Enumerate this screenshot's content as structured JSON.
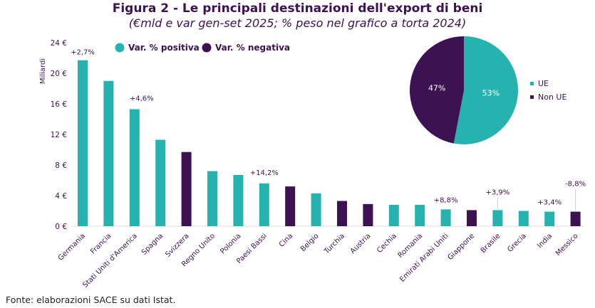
{
  "chart_data": {
    "type": "bar",
    "title": "Figura 2 - Le principali destinazioni dell'export di beni",
    "subtitle": "(€mld e var gen-set 2025; % peso nel grafico a torta 2024)",
    "ylabel": "Miliardi",
    "ylim": [
      0,
      24
    ],
    "yticks": [
      "0 €",
      "4 €",
      "8 €",
      "12 €",
      "16 €",
      "20 €",
      "24 €"
    ],
    "grid": false,
    "legend": {
      "position": "top",
      "items": [
        {
          "name": "Var. % positiva",
          "color": "#26b3b0"
        },
        {
          "name": "Var. % negativa",
          "color": "#3d1152"
        }
      ]
    },
    "categories": [
      "Germania",
      "Francia",
      "Stati Uniti d'America",
      "Spagna",
      "Svizzera",
      "Regno Unito",
      "Polonia",
      "Paesi Bassi",
      "Cina",
      "Belgio",
      "Turchia",
      "Austria",
      "Cechia",
      "Romania",
      "Emirati Arabi Uniti",
      "Giappone",
      "Brasile",
      "Grecia",
      "India",
      "Messico"
    ],
    "values": [
      21.7,
      19.0,
      15.3,
      11.3,
      9.7,
      7.2,
      6.7,
      5.6,
      5.2,
      4.3,
      3.3,
      2.9,
      2.8,
      2.8,
      2.2,
      2.1,
      2.1,
      2.0,
      1.9,
      1.9
    ],
    "variation": [
      "positive",
      "positive",
      "positive",
      "positive",
      "negative",
      "positive",
      "positive",
      "positive",
      "negative",
      "positive",
      "negative",
      "negative",
      "positive",
      "positive",
      "positive",
      "negative",
      "positive",
      "positive",
      "positive",
      "negative"
    ],
    "annotations": [
      {
        "category": "Germania",
        "text": "+2,7%"
      },
      {
        "category": "Stati Uniti d'America",
        "text": "+4,6%"
      },
      {
        "category": "Paesi Bassi",
        "text": "+14,2%"
      },
      {
        "category": "Emirati Arabi Uniti",
        "text": "+8,8%"
      },
      {
        "category": "Brasile",
        "text": "+3,9%"
      },
      {
        "category": "India",
        "text": "+3,4%"
      },
      {
        "category": "Messico",
        "text": "-8,8%"
      }
    ],
    "pie": {
      "type": "pie",
      "slices": [
        {
          "name": "UE",
          "value": 53,
          "label": "53%",
          "color": "#26b3b0"
        },
        {
          "name": "Non UE",
          "value": 47,
          "label": "47%",
          "color": "#3d1152"
        }
      ]
    }
  },
  "source": "Fonte: elaborazioni SACE su dati Istat."
}
